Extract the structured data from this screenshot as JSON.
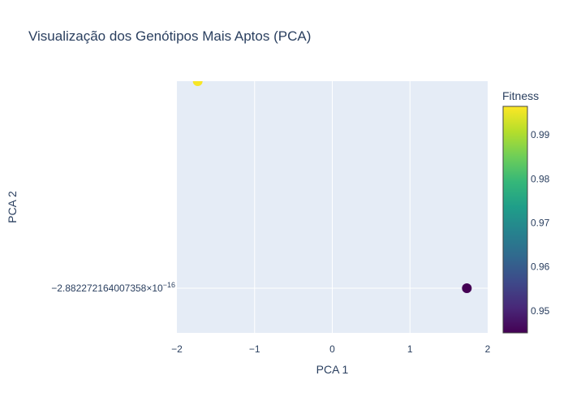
{
  "chart_data": {
    "type": "scatter",
    "title": "Visualização dos Genótipos Mais Aptos (PCA)",
    "xlabel": "PCA 1",
    "ylabel": "PCA 2",
    "xlim": [
      -2,
      2
    ],
    "xticks": [
      -2,
      -1,
      0,
      1,
      2
    ],
    "xtick_labels": [
      "−2",
      "−1",
      "0",
      "1",
      "2"
    ],
    "yticks": [
      {
        "value": 0,
        "mantissa": "−2.882272164007358",
        "times": "×10",
        "exponent": "−16"
      }
    ],
    "grid": true,
    "colorbar": {
      "title": "Fitness",
      "colorscale": "Viridis",
      "range": [
        0.945,
        0.9965
      ],
      "ticks": [
        0.95,
        0.96,
        0.97,
        0.98,
        0.99
      ],
      "tick_labels": [
        "0.95",
        "0.96",
        "0.97",
        "0.98",
        "0.99"
      ]
    },
    "points": [
      {
        "x": -1.732,
        "y": 1.0,
        "fitness": 0.996
      },
      {
        "x": 1.732,
        "y": 0.0,
        "fitness": 0.945
      }
    ]
  },
  "colors": {
    "plot_background": "#E5ECF6",
    "grid": "#FFFFFF",
    "text": "#2A3F5F",
    "viridis": [
      "#440154",
      "#482878",
      "#3E4989",
      "#31688E",
      "#26828E",
      "#1F9E89",
      "#35B779",
      "#6ECE58",
      "#B5DE2B",
      "#FDE725"
    ]
  }
}
